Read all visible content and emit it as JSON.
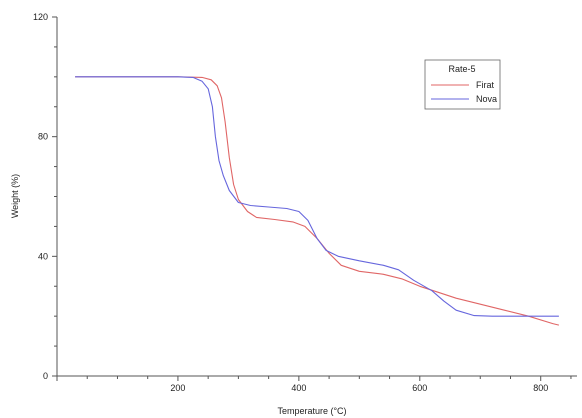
{
  "chart_data": {
    "type": "line",
    "title": "",
    "xlabel": "Temperature (°C)",
    "ylabel": "Weight (%)",
    "xlim": [
      0,
      860
    ],
    "ylim": [
      0,
      120
    ],
    "x_major_ticks": [
      200,
      400,
      600,
      800
    ],
    "x_minor_step": 50,
    "y_major_ticks": [
      0,
      40,
      80,
      120
    ],
    "y_minor_step": 10,
    "x_tick_labels": [
      "200",
      "400",
      "600",
      "800"
    ],
    "y_tick_labels": [
      "0",
      "40",
      "80",
      "120"
    ],
    "grid": false,
    "legend": {
      "title": "Rate-5",
      "position": "top-right"
    },
    "series": [
      {
        "name": "Firat",
        "color": "#e06666",
        "points": [
          [
            30,
            100
          ],
          [
            100,
            100
          ],
          [
            200,
            100
          ],
          [
            240,
            99.8
          ],
          [
            255,
            99
          ],
          [
            265,
            97
          ],
          [
            272,
            93
          ],
          [
            278,
            85
          ],
          [
            285,
            73
          ],
          [
            292,
            64
          ],
          [
            300,
            59
          ],
          [
            315,
            55
          ],
          [
            330,
            53
          ],
          [
            360,
            52.3
          ],
          [
            390,
            51.5
          ],
          [
            410,
            50
          ],
          [
            430,
            46
          ],
          [
            450,
            41
          ],
          [
            470,
            37
          ],
          [
            500,
            35
          ],
          [
            540,
            34
          ],
          [
            570,
            32.5
          ],
          [
            600,
            30
          ],
          [
            630,
            28
          ],
          [
            660,
            26
          ],
          [
            700,
            24
          ],
          [
            740,
            22
          ],
          [
            780,
            20
          ],
          [
            820,
            17.5
          ],
          [
            830,
            17
          ]
        ]
      },
      {
        "name": "Nova",
        "color": "#6666dd",
        "points": [
          [
            30,
            100
          ],
          [
            100,
            100
          ],
          [
            200,
            100
          ],
          [
            225,
            99.8
          ],
          [
            240,
            98.5
          ],
          [
            250,
            96
          ],
          [
            257,
            90
          ],
          [
            262,
            80
          ],
          [
            268,
            72
          ],
          [
            275,
            67
          ],
          [
            285,
            62
          ],
          [
            300,
            58
          ],
          [
            320,
            57
          ],
          [
            350,
            56.5
          ],
          [
            380,
            56
          ],
          [
            400,
            55
          ],
          [
            415,
            52
          ],
          [
            430,
            46
          ],
          [
            445,
            42
          ],
          [
            465,
            40
          ],
          [
            500,
            38.5
          ],
          [
            540,
            37
          ],
          [
            565,
            35.5
          ],
          [
            590,
            32
          ],
          [
            620,
            28.5
          ],
          [
            640,
            25
          ],
          [
            660,
            22
          ],
          [
            690,
            20.2
          ],
          [
            720,
            20
          ],
          [
            780,
            20
          ],
          [
            830,
            20
          ]
        ]
      }
    ]
  }
}
